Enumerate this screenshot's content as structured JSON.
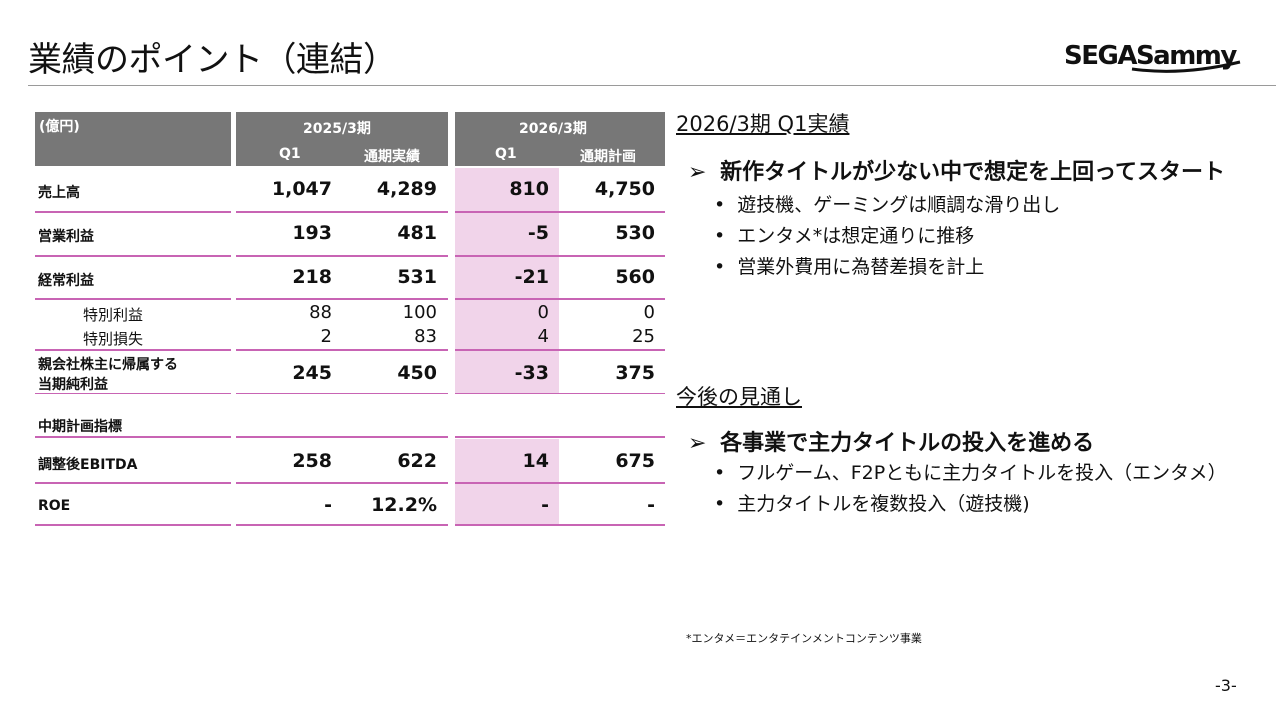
{
  "title": "業績のポイント（連結）",
  "logo_text": "SEGASammy",
  "table": {
    "unit": "(億円)",
    "period_a": "2025/3期",
    "period_b": "2026/3期",
    "col_a1": "Q1",
    "col_a2": "通期実績",
    "col_b1": "Q1",
    "col_b2": "通期計画",
    "rows": [
      {
        "label": "売上高",
        "v": [
          "1,047",
          "4,289",
          "810",
          "4,750"
        ]
      },
      {
        "label": "営業利益",
        "v": [
          "193",
          "481",
          "-5",
          "530"
        ]
      },
      {
        "label": "経常利益",
        "v": [
          "218",
          "531",
          "-21",
          "560"
        ]
      },
      {
        "label": "特別利益",
        "v": [
          "88",
          "100",
          "0",
          "0"
        ]
      },
      {
        "label": "特別損失",
        "v": [
          "2",
          "83",
          "4",
          "25"
        ]
      },
      {
        "label_line1": "親会社株主に帰属する",
        "label_line2": "当期純利益",
        "v": [
          "245",
          "450",
          "-33",
          "375"
        ]
      },
      {
        "label": "中期計画指標"
      },
      {
        "label": "調整後EBITDA",
        "v": [
          "258",
          "622",
          "14",
          "675"
        ]
      },
      {
        "label": "ROE",
        "v": [
          "-",
          "12.2%",
          "-",
          "-"
        ]
      }
    ]
  },
  "section1": {
    "heading": "2026/3期 Q1実績",
    "point_arrow": "➢",
    "point": "新作タイトルが少ない中で想定を上回ってスタート",
    "bullets": [
      "遊技機、ゲーミングは順調な滑り出し",
      "エンタメ*は想定通りに推移",
      "営業外費用に為替差損を計上"
    ]
  },
  "section2": {
    "heading": "今後の見通し",
    "point_arrow": "➢",
    "point": "各事業で主力タイトルの投入を進める",
    "bullets": [
      "フルゲーム、F2Pともに主力タイトルを投入（エンタメ）",
      "主力タイトルを複数投入（遊技機)"
    ]
  },
  "bullet_glyph": "•",
  "footnote": "*エンタメ＝エンタテインメントコンテンツ事業",
  "page_number": "-3-",
  "colors": {
    "header_gray": "#777777",
    "highlight_pink": "#f1d4ea",
    "rule_magenta": "#c864b4"
  }
}
